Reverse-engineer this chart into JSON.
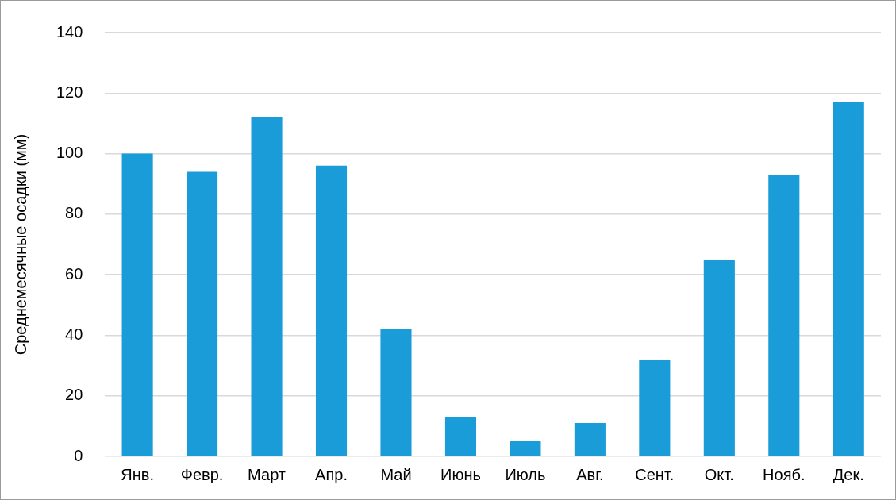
{
  "chart_data": {
    "type": "bar",
    "ylabel": "Среднемесячные осадки (мм)",
    "categories": [
      "Янв.",
      "Февр.",
      "Март",
      "Апр.",
      "Май",
      "Июнь",
      "Июль",
      "Авг.",
      "Сент.",
      "Окт.",
      "Нояб.",
      "Дек."
    ],
    "values": [
      100,
      94,
      112,
      96,
      42,
      13,
      5,
      11,
      32,
      65,
      93,
      117
    ],
    "color": "#1a9cd8",
    "ylim": [
      0,
      140
    ],
    "yticks": [
      0,
      20,
      40,
      60,
      80,
      100,
      120,
      140
    ],
    "grid": "y",
    "legend": false
  }
}
